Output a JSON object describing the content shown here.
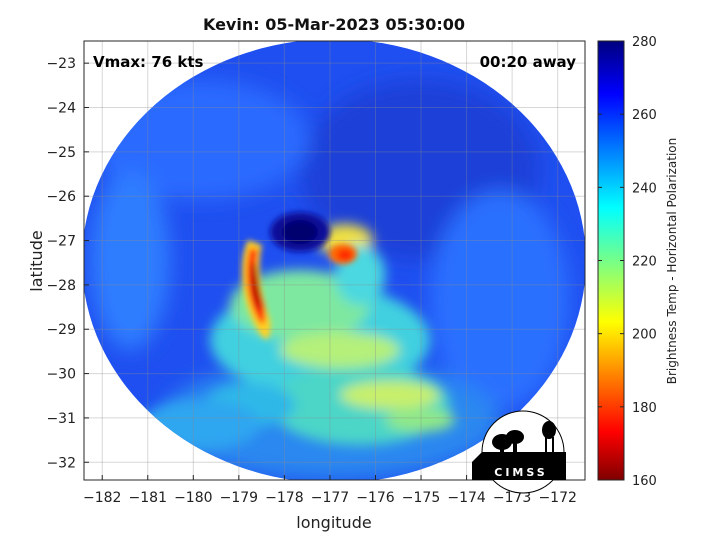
{
  "title": "Kevin: 05-Mar-2023 05:30:00",
  "vmax": "Vmax: 76 kts",
  "time_away": "00:20 away",
  "logo_text": "CIMSS",
  "chart_data": {
    "type": "heatmap",
    "xlabel": "longitude",
    "ylabel": "latitude",
    "xticks": [
      -182,
      -181,
      -180,
      -179,
      -178,
      -177,
      -176,
      -175,
      -174,
      -173,
      -172
    ],
    "yticks": [
      -23,
      -24,
      -25,
      -26,
      -27,
      -28,
      -29,
      -30,
      -31,
      -32
    ],
    "xlim": [
      -182.4,
      -171.4
    ],
    "ylim": [
      -32.4,
      -22.5
    ],
    "grid": true,
    "colorbar": {
      "label": "Brightness Temp - Horizontal Polarization",
      "ticks": [
        160,
        180,
        200,
        220,
        240,
        260,
        280
      ],
      "range": [
        160,
        280
      ],
      "colormap": "jet"
    },
    "swath_center": [
      -176.9,
      -27.3
    ],
    "eye_center": [
      -177.1,
      -26.95
    ],
    "features": [
      {
        "name": "eye",
        "lon": -177.1,
        "lat": -26.95,
        "tb": 272
      },
      {
        "name": "western eyewall band",
        "lon": -178.5,
        "lat": -27.9,
        "tb": 172
      },
      {
        "name": "north-east eyewall",
        "lon": -176.3,
        "lat": -27.3,
        "tb": 188
      },
      {
        "name": "southern rainband",
        "lon": -177.0,
        "lat": -29.4,
        "tb": 222
      }
    ]
  }
}
